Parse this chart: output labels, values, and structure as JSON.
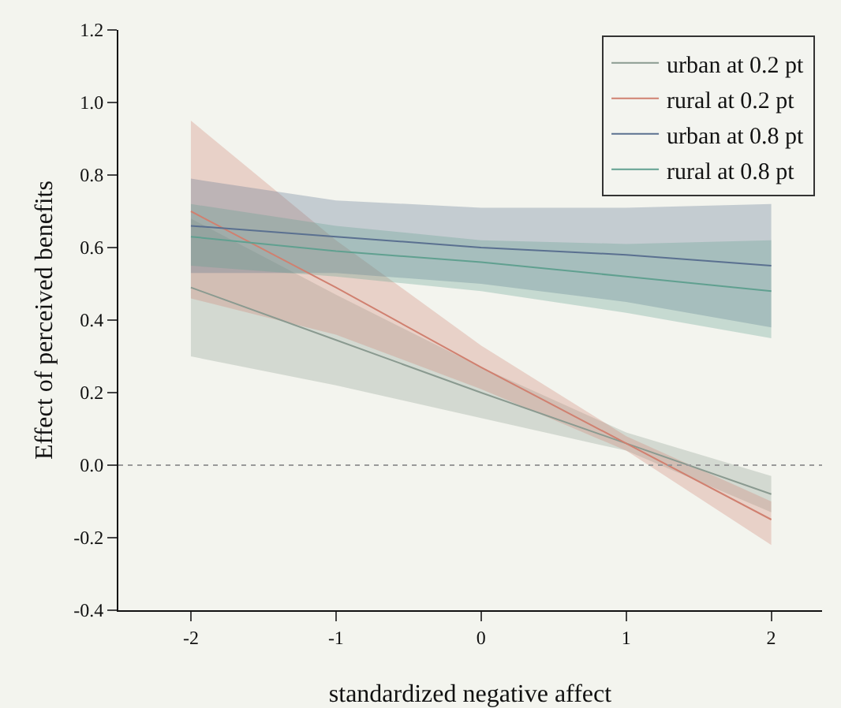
{
  "chart_data": {
    "type": "line",
    "xlabel": "standardized negative affect",
    "ylabel": "Effect of perceived benefits",
    "x": [
      -2,
      -1,
      0,
      1,
      2
    ],
    "series": [
      {
        "name": "urban at 0.2 pt",
        "color": "#8a9a90",
        "values": [
          0.49,
          0.345,
          0.2,
          0.06,
          -0.08
        ],
        "lower": [
          0.3,
          0.22,
          0.13,
          0.04,
          -0.13
        ],
        "upper": [
          0.68,
          0.47,
          0.27,
          0.09,
          -0.03
        ]
      },
      {
        "name": "rural at 0.2 pt",
        "color": "#d08070",
        "values": [
          0.7,
          0.49,
          0.27,
          0.06,
          -0.15
        ],
        "lower": [
          0.46,
          0.36,
          0.21,
          0.04,
          -0.22
        ],
        "upper": [
          0.95,
          0.62,
          0.33,
          0.08,
          -0.1
        ]
      },
      {
        "name": "urban at 0.8 pt",
        "color": "#5a7090",
        "values": [
          0.66,
          0.63,
          0.6,
          0.58,
          0.55
        ],
        "lower": [
          0.53,
          0.53,
          0.5,
          0.45,
          0.38
        ],
        "upper": [
          0.79,
          0.73,
          0.71,
          0.71,
          0.72
        ]
      },
      {
        "name": "rural at 0.8 pt",
        "color": "#60a090",
        "values": [
          0.63,
          0.59,
          0.56,
          0.52,
          0.48
        ],
        "lower": [
          0.55,
          0.52,
          0.48,
          0.42,
          0.35
        ],
        "upper": [
          0.72,
          0.66,
          0.62,
          0.61,
          0.62
        ]
      }
    ],
    "xlim": [
      -2.5,
      2.35
    ],
    "xticks": [
      -2,
      -1,
      0,
      1,
      2
    ],
    "ylim": [
      -0.4,
      1.2
    ],
    "yticks": [
      -0.4,
      -0.2,
      {
        "value": 0,
        "label": "0.0"
      },
      0.2,
      0.4,
      0.6,
      0.8,
      {
        "value": 1,
        "label": "1.0"
      },
      1.2
    ],
    "ref_lines": [
      {
        "axis": "y",
        "value": 0,
        "line_style": "dotted",
        "color": "#999999"
      }
    ],
    "grid": false,
    "legend": "top right",
    "marker": "none",
    "line_style": "solid"
  }
}
